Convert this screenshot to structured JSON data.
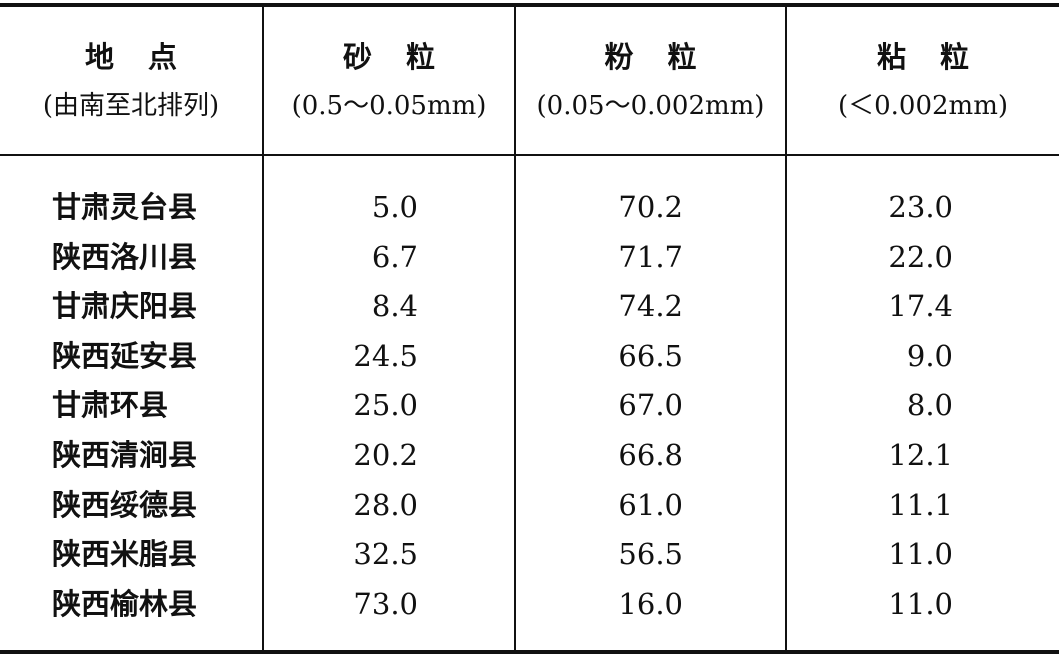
{
  "table": {
    "header": [
      [
        "地点",
        "(由南至北排列)"
      ],
      [
        "砂粒",
        "(0.5～0.05mm)"
      ],
      [
        "粉粒",
        "(0.05～0.002mm)"
      ],
      [
        "粘粒",
        "(＜0.002mm)"
      ]
    ],
    "rows": [
      [
        "甘肃灵台县",
        "5.0",
        "70.2",
        "23.0"
      ],
      [
        "陕西洛川县",
        "6.7",
        "71.7",
        "22.0"
      ],
      [
        "甘肃庆阳县",
        "8.4",
        "74.2",
        "17.4"
      ],
      [
        "陕西延安县",
        "24.5",
        "66.5",
        "9.0"
      ],
      [
        "甘肃环县",
        "25.0",
        "67.0",
        "8.0"
      ],
      [
        "陕西清涧县",
        "20.2",
        "66.8",
        "12.1"
      ],
      [
        "陕西绥德县",
        "28.0",
        "61.0",
        "11.1"
      ],
      [
        "陕西米脂县",
        "32.5",
        "56.5",
        "11.0"
      ],
      [
        "陕西榆林县",
        "73.0",
        "16.0",
        "11.0"
      ]
    ]
  }
}
